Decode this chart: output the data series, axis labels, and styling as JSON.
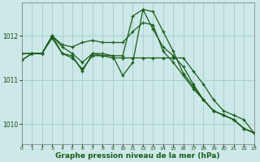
{
  "bg_color": "#cce8e8",
  "grid_color_major": "#aacfcf",
  "grid_color_minor": "#bbdddd",
  "line_color": "#1a5c1a",
  "xlabel": "Graphe pression niveau de la mer (hPa)",
  "xlabel_fontsize": 6.5,
  "ylim": [
    1009.55,
    1012.75
  ],
  "yticks": [
    1010,
    1011,
    1012
  ],
  "xlim": [
    0,
    23
  ],
  "xticks": [
    0,
    1,
    2,
    3,
    4,
    5,
    6,
    7,
    8,
    9,
    10,
    11,
    12,
    13,
    14,
    15,
    16,
    17,
    18,
    19,
    20,
    21,
    22,
    23
  ],
  "series": [
    [
      1011.45,
      1011.6,
      1011.6,
      1012.0,
      1011.8,
      1011.75,
      1011.85,
      1011.9,
      1011.85,
      1011.85,
      1011.85,
      1012.1,
      1012.3,
      1012.25,
      1011.65,
      1011.4,
      1011.1,
      1010.8,
      1010.55,
      1010.3,
      1010.2,
      1010.1,
      1009.9,
      1009.8
    ],
    [
      1011.6,
      1011.6,
      1011.6,
      1012.0,
      1011.6,
      1011.55,
      1011.2,
      1011.6,
      1011.6,
      1011.55,
      1011.55,
      1012.45,
      1012.6,
      1012.55,
      1012.1,
      1011.65,
      1011.15,
      1010.85,
      1010.55,
      1010.3,
      1010.2,
      1010.1,
      1009.9,
      1009.8
    ],
    [
      1011.45,
      1011.6,
      1011.6,
      1012.0,
      1011.75,
      1011.6,
      1011.4,
      1011.6,
      1011.55,
      1011.55,
      1011.1,
      1011.4,
      1012.6,
      1012.15,
      1011.75,
      1011.55,
      1011.3,
      1010.9,
      1010.55,
      1010.3,
      1010.2,
      1010.1,
      1009.9,
      1009.8
    ],
    [
      1011.6,
      1011.6,
      1011.6,
      1011.95,
      1011.6,
      1011.5,
      1011.25,
      1011.55,
      1011.55,
      1011.5,
      1011.5,
      1011.5,
      1011.5,
      1011.5,
      1011.5,
      1011.5,
      1011.5,
      1011.2,
      1010.9,
      1010.55,
      1010.3,
      1010.2,
      1010.1,
      1009.8
    ]
  ]
}
